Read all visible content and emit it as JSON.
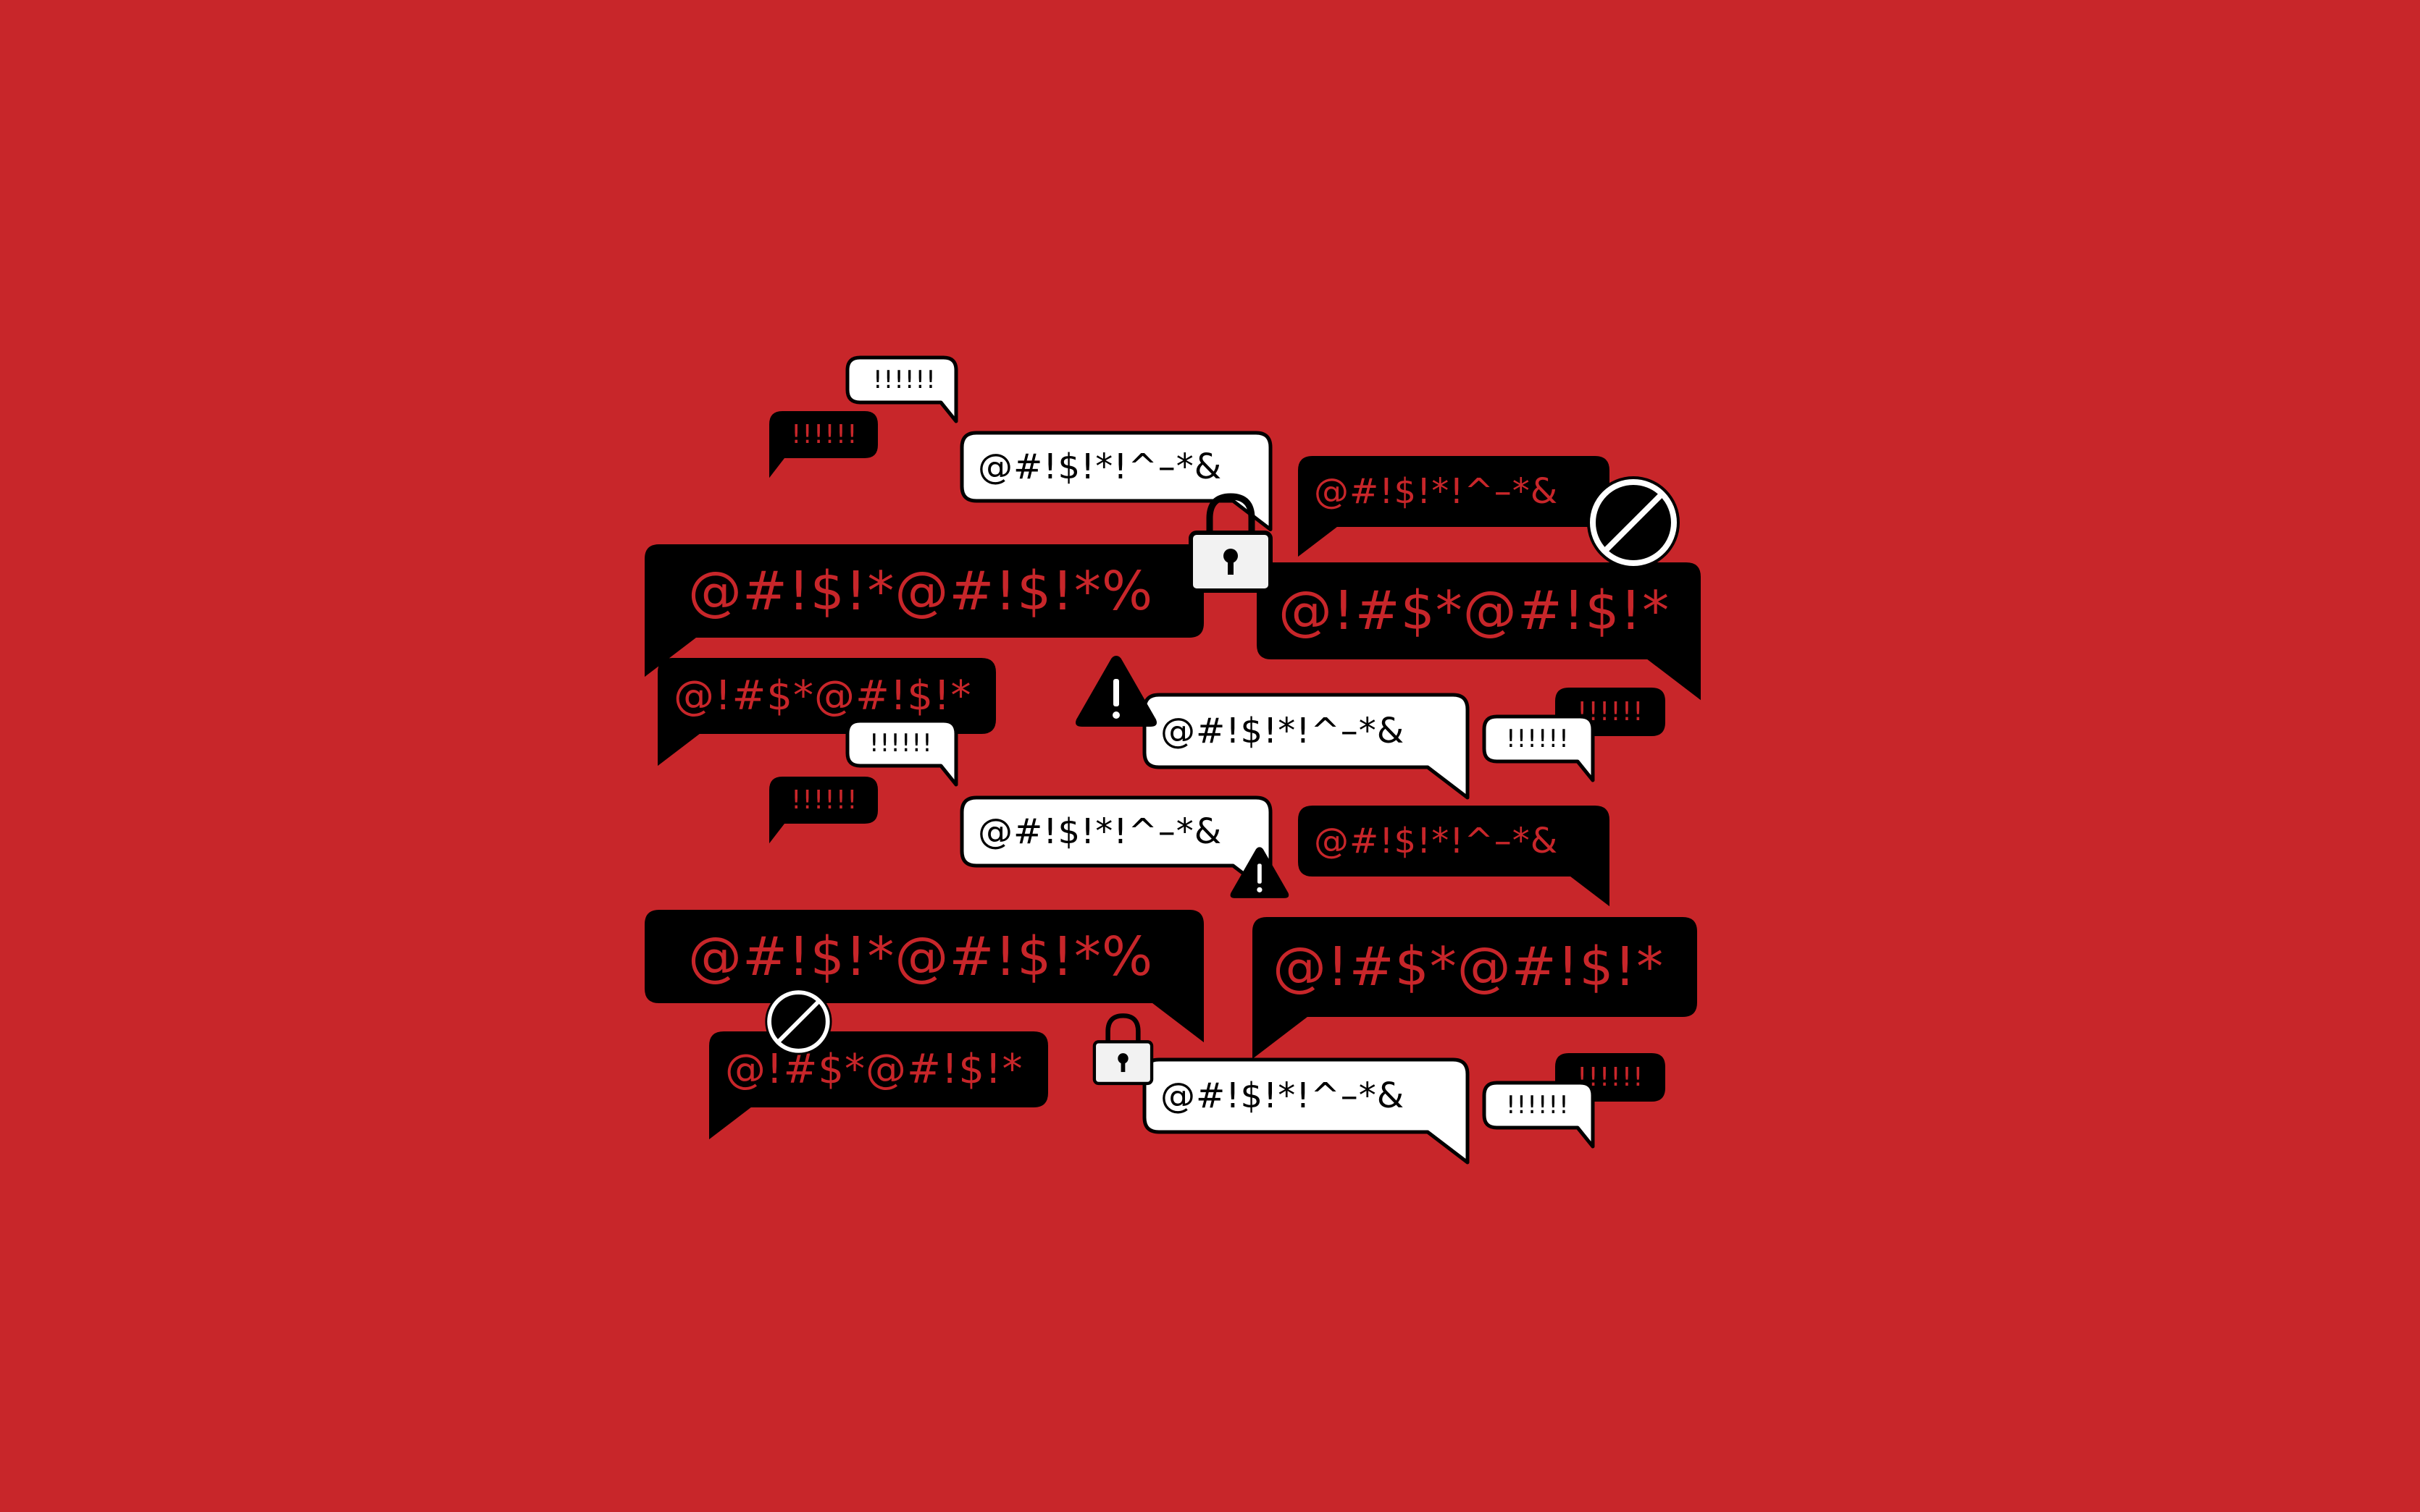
{
  "colors": {
    "background": "#c8262a",
    "dark_bubble": "#000000",
    "dark_bubble_text": "#c8262a",
    "light_bubble": "#ffffff",
    "light_bubble_text": "#000000",
    "outline": "#000000"
  },
  "bubbles": [
    {
      "style": "light",
      "text": "!!!!!!"
    },
    {
      "style": "dark",
      "text": "!!!!!!"
    },
    {
      "style": "light",
      "text": "@#!$!*!^–*&"
    },
    {
      "style": "dark",
      "text": "@#!$!*!^–*&"
    },
    {
      "style": "dark",
      "text": "@#!$!*@#!$!*%"
    },
    {
      "style": "dark",
      "text": "@!#$*@#!$!*"
    },
    {
      "style": "dark",
      "text": "@!#$*@#!$!*"
    },
    {
      "style": "light",
      "text": "@#!$!*!^–*&"
    },
    {
      "style": "light",
      "text": "!!!!!!"
    },
    {
      "style": "dark",
      "text": "!!!!!!"
    },
    {
      "style": "light",
      "text": "!!!!!!"
    },
    {
      "style": "dark",
      "text": "!!!!!!"
    },
    {
      "style": "light",
      "text": "@#!$!*!^–*&"
    },
    {
      "style": "dark",
      "text": "@#!$!*!^–*&"
    },
    {
      "style": "dark",
      "text": "@#!$!*@#!$!*%"
    },
    {
      "style": "dark",
      "text": "@!#$*@#!$!*"
    },
    {
      "style": "dark",
      "text": "@!#$*@#!$!*"
    },
    {
      "style": "light",
      "text": "@#!$!*!^–*&"
    },
    {
      "style": "dark",
      "text": "!!!!!!"
    },
    {
      "style": "light",
      "text": "!!!!!!"
    }
  ],
  "icons": [
    {
      "name": "padlock-icon"
    },
    {
      "name": "prohibited-icon"
    },
    {
      "name": "warning-icon"
    },
    {
      "name": "warning-icon"
    },
    {
      "name": "prohibited-icon"
    },
    {
      "name": "padlock-icon"
    }
  ]
}
